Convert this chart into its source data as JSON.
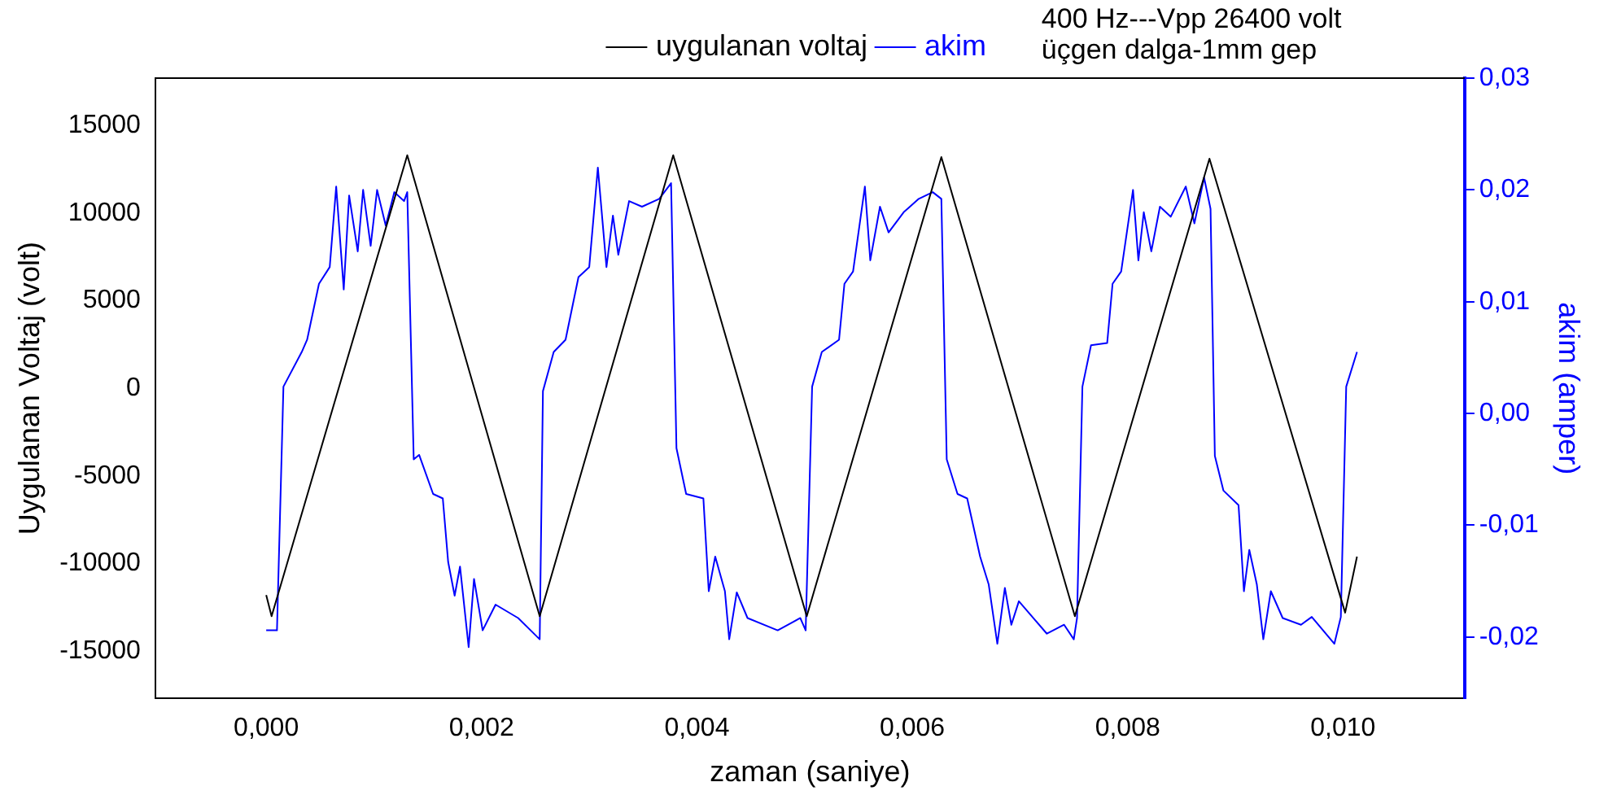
{
  "chart_data": {
    "type": "line",
    "xlabel": "zaman (saniye)",
    "ylabel": "Uygulanan Voltaj (volt)",
    "y2label": "akim (amper)",
    "annotations": [
      "400 Hz---Vpp 26400 volt",
      "üçgen dalga-1mm gep"
    ],
    "xlim": [
      -0.00103,
      0.01113
    ],
    "xticks": [
      {
        "value": 0,
        "label": "0,000"
      },
      {
        "value": 0.002,
        "label": "0,002"
      },
      {
        "value": 0.004,
        "label": "0,004"
      },
      {
        "value": 0.006,
        "label": "0,006"
      },
      {
        "value": 0.008,
        "label": "0,008"
      },
      {
        "value": 0.01,
        "label": "0,010"
      }
    ],
    "ylim": [
      -17700,
      17700
    ],
    "yticks": [
      -15000,
      -10000,
      -5000,
      0,
      5000,
      10000,
      15000
    ],
    "y2lim": [
      -0.0255,
      0.03
    ],
    "y2ticks": [
      {
        "value": -0.02,
        "label": "-0,02"
      },
      {
        "value": -0.01,
        "label": "-0,01"
      },
      {
        "value": 0,
        "label": "0,00"
      },
      {
        "value": 0.01,
        "label": "0,01"
      },
      {
        "value": 0.02,
        "label": "0,02"
      },
      {
        "value": 0.03,
        "label": "0,03"
      }
    ],
    "grid": false,
    "legend": "top",
    "marker": "none",
    "line_style": "solid",
    "series": [
      {
        "name": "uygulanan voltaj",
        "color": "#000000",
        "x": [
          0,
          5e-05,
          0.00131,
          0.00254,
          0.00378,
          0.00502,
          0.00627,
          0.00751,
          0.00876,
          0.01002,
          0.01013
        ],
        "values": [
          -11800,
          -13000,
          13300,
          -13000,
          13300,
          -13000,
          13200,
          -13000,
          13100,
          -12800,
          -9600
        ]
      },
      {
        "name": "akim",
        "color": "#0000ff",
        "axis": "y2",
        "x": [
          0,
          0.0001,
          0.00016,
          0.00033,
          0.00038,
          0.00049,
          0.00059,
          0.00065,
          0.00072,
          0.00077,
          0.00085,
          0.0009,
          0.00097,
          0.00103,
          0.00111,
          0.00119,
          0.00128,
          0.00131,
          0.00137,
          0.00142,
          0.00155,
          0.00164,
          0.00169,
          0.00175,
          0.0018,
          0.00188,
          0.00193,
          0.00201,
          0.00213,
          0.00234,
          0.00254,
          0.00257,
          0.00267,
          0.00278,
          0.0029,
          0.003,
          0.00308,
          0.00316,
          0.00322,
          0.00327,
          0.00337,
          0.00349,
          0.00365,
          0.00376,
          0.00381,
          0.0039,
          0.00406,
          0.00411,
          0.00417,
          0.00426,
          0.0043,
          0.00437,
          0.00447,
          0.00475,
          0.00496,
          0.00501,
          0.00507,
          0.00516,
          0.00532,
          0.00537,
          0.00545,
          0.00556,
          0.00561,
          0.0057,
          0.00578,
          0.00592,
          0.00606,
          0.00619,
          0.00627,
          0.00632,
          0.00642,
          0.00651,
          0.00663,
          0.00671,
          0.00679,
          0.00686,
          0.00692,
          0.00699,
          0.00725,
          0.00741,
          0.0075,
          0.00753,
          0.00758,
          0.00766,
          0.00781,
          0.00786,
          0.00794,
          0.00805,
          0.0081,
          0.00815,
          0.00822,
          0.0083,
          0.0084,
          0.00854,
          0.00862,
          0.00871,
          0.00877,
          0.00881,
          0.00889,
          0.00903,
          0.00908,
          0.00913,
          0.0092,
          0.00926,
          0.00933,
          0.00944,
          0.00961,
          0.00971,
          0.00992,
          0.00998,
          0.01003,
          0.01013
        ],
        "values": [
          -0.0194,
          -0.0194,
          0.0024,
          0.0055,
          0.0066,
          0.0116,
          0.0131,
          0.0203,
          0.0111,
          0.0195,
          0.0145,
          0.02,
          0.015,
          0.02,
          0.0168,
          0.0198,
          0.019,
          0.0198,
          -0.0041,
          -0.0037,
          -0.0072,
          -0.0076,
          -0.0133,
          -0.0163,
          -0.0137,
          -0.0209,
          -0.0148,
          -0.0194,
          -0.0171,
          -0.0183,
          -0.0202,
          0.002,
          0.0055,
          0.0066,
          0.0122,
          0.0131,
          0.022,
          0.0131,
          0.0177,
          0.0142,
          0.019,
          0.0185,
          0.0192,
          0.0206,
          -0.0031,
          -0.0072,
          -0.0076,
          -0.0159,
          -0.0128,
          -0.0159,
          -0.0202,
          -0.016,
          -0.0183,
          -0.0194,
          -0.0183,
          -0.0194,
          0.0024,
          0.0055,
          0.0066,
          0.0116,
          0.0127,
          0.0203,
          0.0137,
          0.0185,
          0.0162,
          0.018,
          0.0192,
          0.0198,
          0.0192,
          -0.0041,
          -0.0072,
          -0.0076,
          -0.0128,
          -0.0153,
          -0.0206,
          -0.0156,
          -0.0189,
          -0.0168,
          -0.0197,
          -0.0189,
          -0.0202,
          -0.0183,
          0.0024,
          0.0061,
          0.0063,
          0.0116,
          0.0127,
          0.02,
          0.0137,
          0.018,
          0.0145,
          0.0185,
          0.0176,
          0.0203,
          0.017,
          0.0211,
          0.0183,
          -0.0038,
          -0.0069,
          -0.0082,
          -0.0159,
          -0.0122,
          -0.0153,
          -0.0202,
          -0.0159,
          -0.0183,
          -0.0189,
          -0.0182,
          -0.0206,
          -0.0182,
          0.0024,
          0.0055
        ]
      }
    ]
  }
}
